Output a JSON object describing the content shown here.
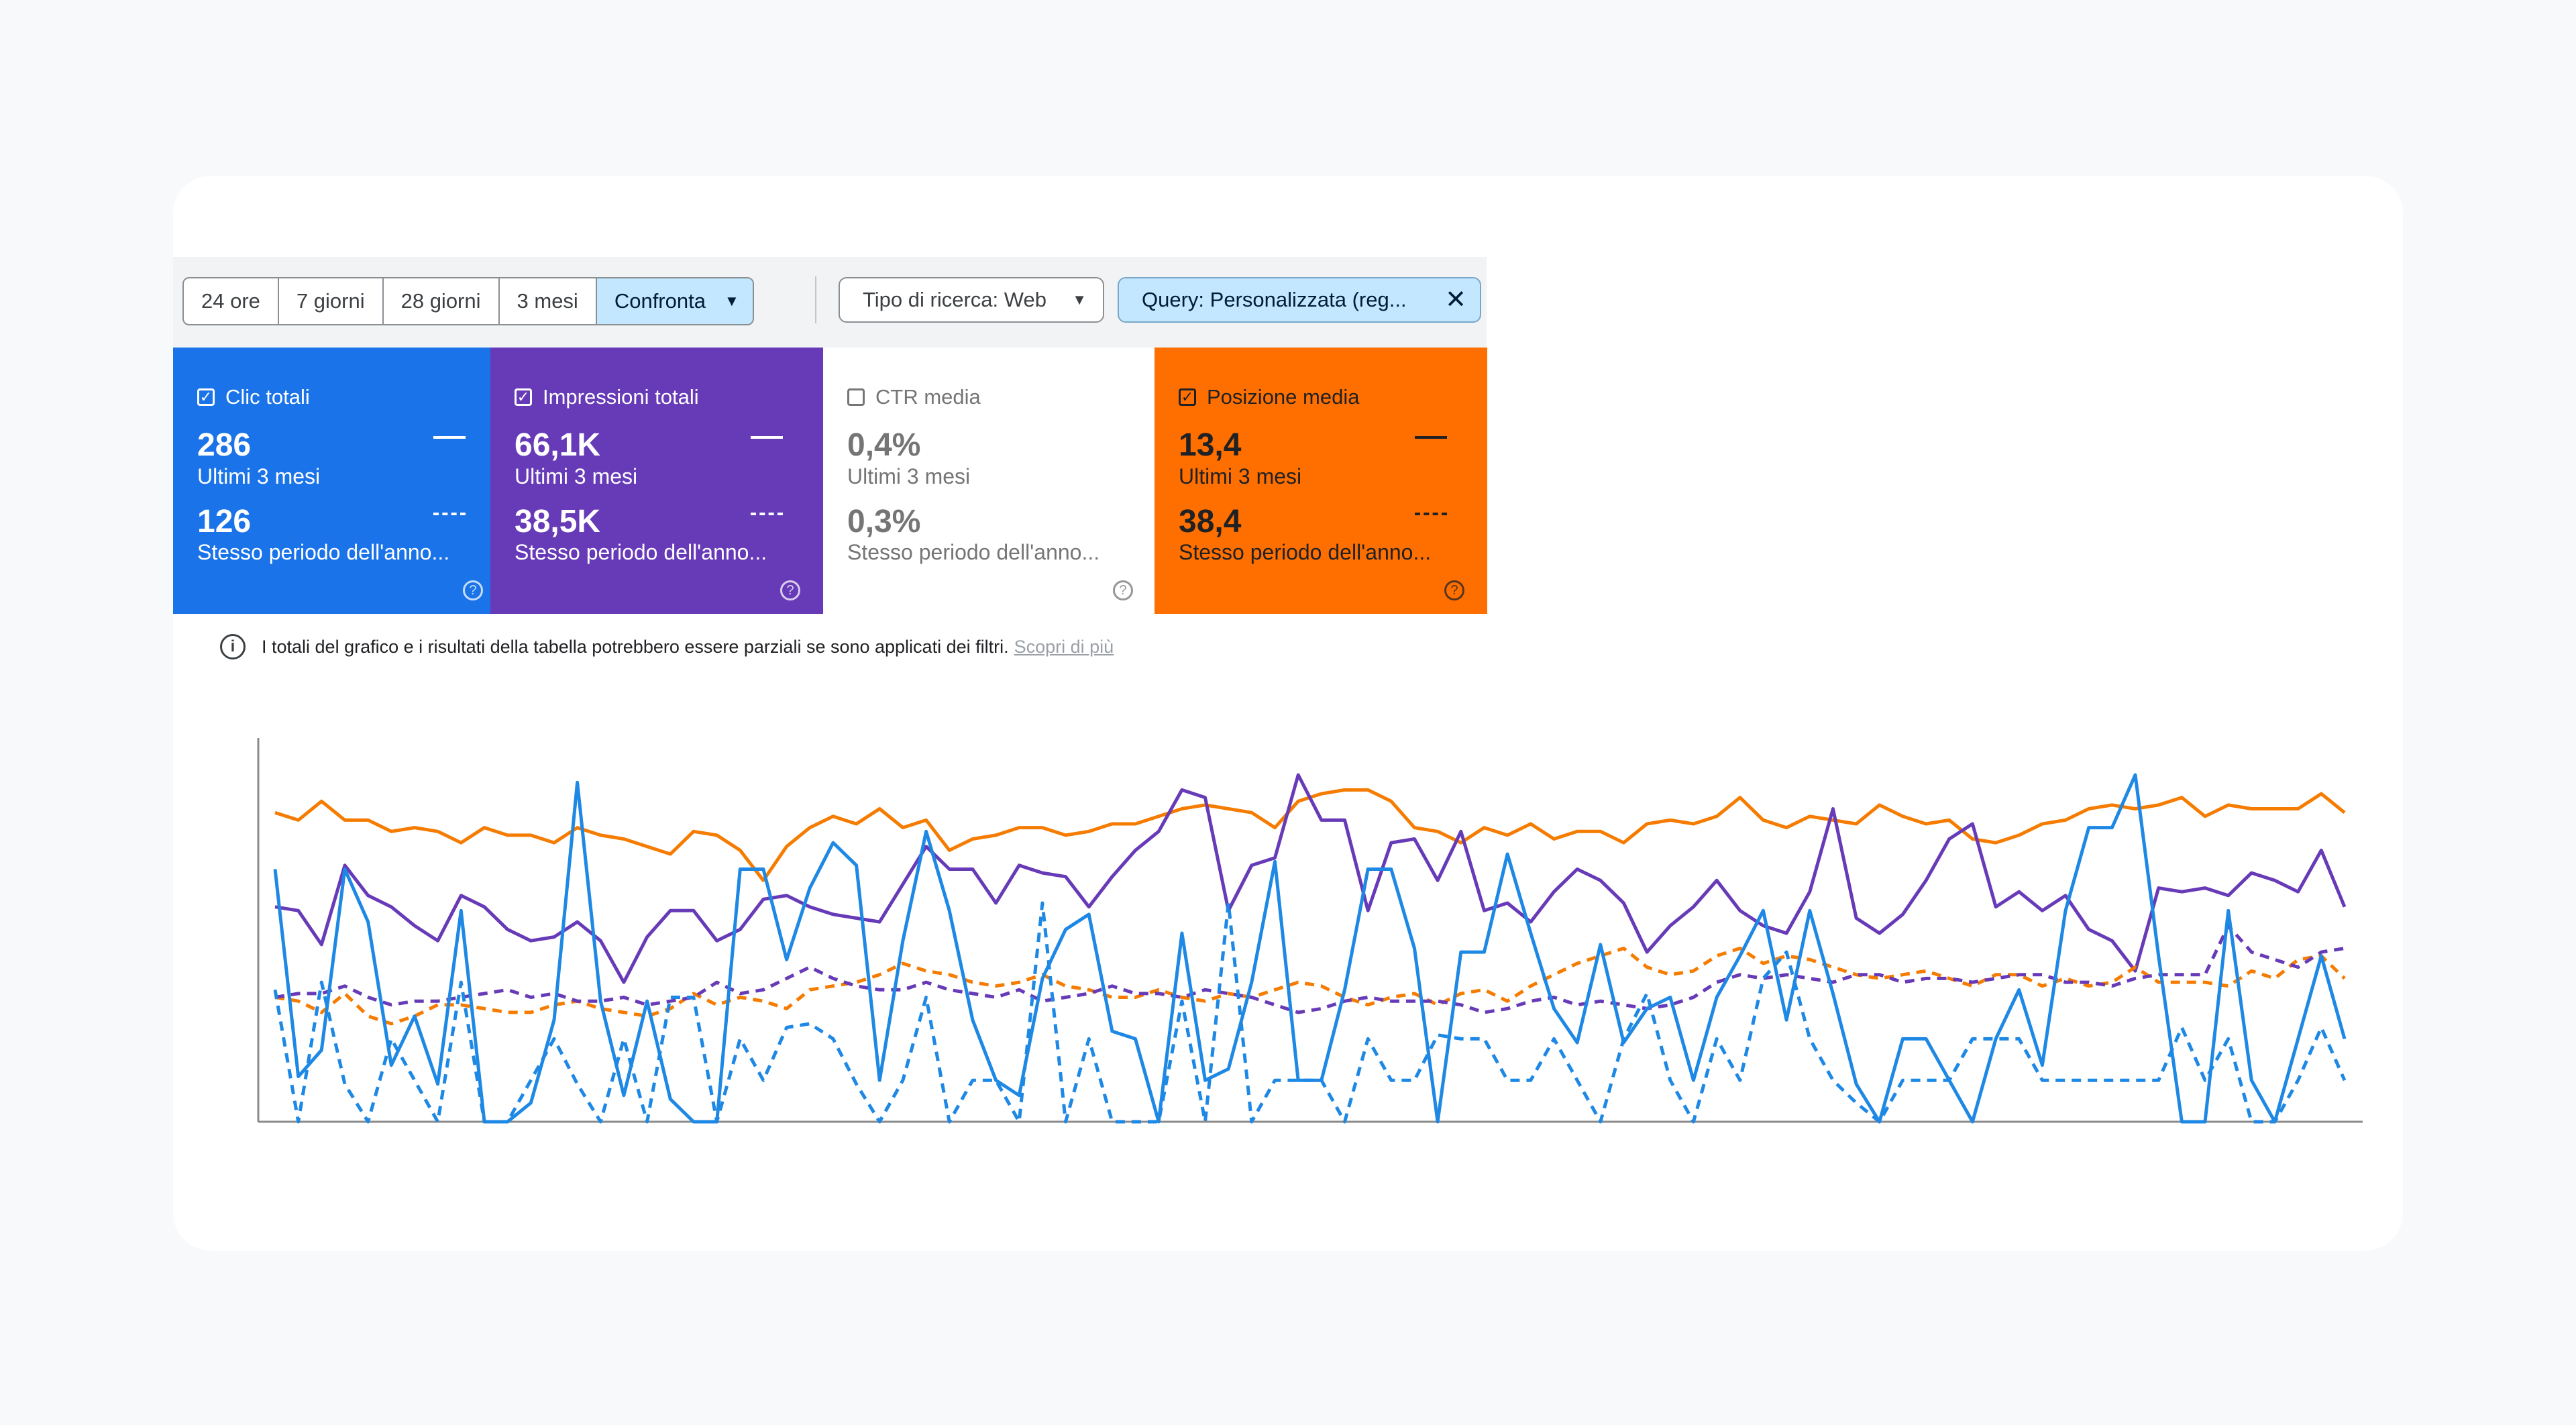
{
  "toolbar": {
    "ranges": [
      "24 ore",
      "7 giorni",
      "28 giorni",
      "3 mesi"
    ],
    "compare_label": "Confronta",
    "search_type_label": "Tipo di ricerca: Web",
    "query_filter_label": "Query: Personalizzata (reg..."
  },
  "metrics": [
    {
      "label": "Clic totali",
      "checked": true,
      "value": "286",
      "period": "Ultimi 3 mesi",
      "compare_value": "126",
      "compare_period": "Stesso periodo dell'anno...",
      "color": "#1a73e8"
    },
    {
      "label": "Impressioni totali",
      "checked": true,
      "value": "66,1K",
      "period": "Ultimi 3 mesi",
      "compare_value": "38,5K",
      "compare_period": "Stesso periodo dell'anno...",
      "color": "#673ab7"
    },
    {
      "label": "CTR media",
      "checked": false,
      "value": "0,4%",
      "period": "Ultimi 3 mesi",
      "compare_value": "0,3%",
      "compare_period": "Stesso periodo dell'anno...",
      "color": "#ffffff"
    },
    {
      "label": "Posizione media",
      "checked": true,
      "value": "13,4",
      "period": "Ultimi 3 mesi",
      "compare_value": "38,4",
      "compare_period": "Stesso periodo dell'anno...",
      "color": "#ff6f00"
    }
  ],
  "notice": {
    "text": "I totali del grafico e i risultati della tabella potrebbero essere parziali se sono applicati dei filtri.",
    "link": "Scopri di più"
  },
  "chart_data": {
    "type": "line",
    "y_axis": "normalized 0-1 per metric (no tick labels shown)",
    "grid": false,
    "legend": "none",
    "series": [
      {
        "metric": "Posizione media",
        "period": "current",
        "color": "#f57c00",
        "style": "solid",
        "values": [
          0.82,
          0.8,
          0.85,
          0.8,
          0.8,
          0.77,
          0.78,
          0.77,
          0.74,
          0.78,
          0.76,
          0.76,
          0.74,
          0.78,
          0.76,
          0.75,
          0.73,
          0.71,
          0.77,
          0.76,
          0.72,
          0.64,
          0.73,
          0.78,
          0.81,
          0.79,
          0.83,
          0.78,
          0.8,
          0.72,
          0.75,
          0.76,
          0.78,
          0.78,
          0.76,
          0.77,
          0.79,
          0.79,
          0.81,
          0.83,
          0.84,
          0.83,
          0.82,
          0.78,
          0.85,
          0.87,
          0.88,
          0.88,
          0.85,
          0.78,
          0.77,
          0.74,
          0.78,
          0.76,
          0.79,
          0.75,
          0.77,
          0.77,
          0.74,
          0.79,
          0.8,
          0.79,
          0.81,
          0.86,
          0.8,
          0.78,
          0.81,
          0.8,
          0.79,
          0.84,
          0.81,
          0.79,
          0.8,
          0.75,
          0.74,
          0.76,
          0.79,
          0.8,
          0.83,
          0.84,
          0.83,
          0.84,
          0.86,
          0.81,
          0.84,
          0.83,
          0.83,
          0.83,
          0.87,
          0.82
        ]
      },
      {
        "metric": "Impressioni totali",
        "period": "current",
        "color": "#673ab7",
        "style": "solid",
        "values": [
          0.57,
          0.56,
          0.47,
          0.68,
          0.6,
          0.57,
          0.52,
          0.48,
          0.6,
          0.57,
          0.51,
          0.48,
          0.49,
          0.53,
          0.48,
          0.37,
          0.49,
          0.56,
          0.56,
          0.48,
          0.51,
          0.59,
          0.6,
          0.57,
          0.55,
          0.54,
          0.53,
          0.63,
          0.73,
          0.67,
          0.67,
          0.58,
          0.68,
          0.66,
          0.65,
          0.57,
          0.65,
          0.72,
          0.77,
          0.88,
          0.86,
          0.56,
          0.68,
          0.7,
          0.92,
          0.8,
          0.8,
          0.56,
          0.74,
          0.75,
          0.64,
          0.77,
          0.56,
          0.58,
          0.53,
          0.61,
          0.67,
          0.64,
          0.58,
          0.45,
          0.52,
          0.57,
          0.64,
          0.56,
          0.52,
          0.5,
          0.61,
          0.83,
          0.54,
          0.5,
          0.55,
          0.64,
          0.75,
          0.79,
          0.57,
          0.61,
          0.56,
          0.6,
          0.51,
          0.48,
          0.4,
          0.62,
          0.61,
          0.62,
          0.6,
          0.66,
          0.64,
          0.61,
          0.72,
          0.57
        ]
      },
      {
        "metric": "Posizione media",
        "period": "previous",
        "color": "#f57c00",
        "style": "dashed",
        "values": [
          0.33,
          0.32,
          0.29,
          0.34,
          0.28,
          0.26,
          0.28,
          0.31,
          0.31,
          0.3,
          0.29,
          0.29,
          0.31,
          0.32,
          0.3,
          0.29,
          0.28,
          0.3,
          0.34,
          0.31,
          0.33,
          0.32,
          0.3,
          0.35,
          0.36,
          0.37,
          0.39,
          0.42,
          0.4,
          0.39,
          0.37,
          0.36,
          0.37,
          0.39,
          0.36,
          0.35,
          0.33,
          0.33,
          0.35,
          0.33,
          0.32,
          0.34,
          0.33,
          0.35,
          0.37,
          0.36,
          0.33,
          0.31,
          0.33,
          0.34,
          0.31,
          0.34,
          0.35,
          0.32,
          0.36,
          0.39,
          0.42,
          0.44,
          0.46,
          0.41,
          0.39,
          0.4,
          0.44,
          0.46,
          0.42,
          0.44,
          0.43,
          0.41,
          0.39,
          0.38,
          0.39,
          0.4,
          0.38,
          0.36,
          0.39,
          0.39,
          0.36,
          0.38,
          0.36,
          0.37,
          0.41,
          0.37,
          0.37,
          0.37,
          0.36,
          0.4,
          0.38,
          0.43,
          0.44,
          0.38
        ]
      },
      {
        "metric": "Impressioni totali",
        "period": "previous",
        "color": "#673ab7",
        "style": "dashed",
        "values": [
          0.33,
          0.34,
          0.34,
          0.36,
          0.33,
          0.31,
          0.32,
          0.32,
          0.33,
          0.34,
          0.35,
          0.33,
          0.34,
          0.32,
          0.32,
          0.33,
          0.31,
          0.32,
          0.33,
          0.37,
          0.34,
          0.35,
          0.38,
          0.41,
          0.38,
          0.36,
          0.35,
          0.35,
          0.37,
          0.35,
          0.34,
          0.33,
          0.35,
          0.32,
          0.33,
          0.34,
          0.36,
          0.34,
          0.34,
          0.33,
          0.35,
          0.34,
          0.33,
          0.31,
          0.29,
          0.3,
          0.32,
          0.33,
          0.32,
          0.32,
          0.32,
          0.31,
          0.29,
          0.3,
          0.32,
          0.33,
          0.31,
          0.32,
          0.31,
          0.3,
          0.31,
          0.33,
          0.37,
          0.39,
          0.38,
          0.39,
          0.38,
          0.37,
          0.39,
          0.39,
          0.37,
          0.38,
          0.38,
          0.37,
          0.38,
          0.39,
          0.39,
          0.37,
          0.37,
          0.36,
          0.38,
          0.39,
          0.39,
          0.39,
          0.52,
          0.45,
          0.43,
          0.41,
          0.45,
          0.46
        ]
      },
      {
        "metric": "Clic totali",
        "period": "current",
        "color": "#1e88e5",
        "style": "solid",
        "values": [
          0.67,
          0.12,
          0.19,
          0.67,
          0.53,
          0.15,
          0.28,
          0.1,
          0.56,
          0.0,
          0.0,
          0.05,
          0.27,
          0.9,
          0.32,
          0.07,
          0.32,
          0.06,
          0.0,
          0.0,
          0.67,
          0.67,
          0.43,
          0.62,
          0.74,
          0.68,
          0.11,
          0.48,
          0.77,
          0.56,
          0.27,
          0.11,
          0.07,
          0.38,
          0.51,
          0.55,
          0.24,
          0.22,
          0.0,
          0.5,
          0.11,
          0.14,
          0.37,
          0.69,
          0.11,
          0.11,
          0.35,
          0.67,
          0.67,
          0.46,
          0.0,
          0.45,
          0.45,
          0.71,
          0.5,
          0.3,
          0.21,
          0.47,
          0.21,
          0.3,
          0.33,
          0.11,
          0.33,
          0.44,
          0.56,
          0.27,
          0.56,
          0.34,
          0.1,
          0.0,
          0.22,
          0.22,
          0.11,
          0.0,
          0.22,
          0.35,
          0.15,
          0.56,
          0.78,
          0.78,
          0.92,
          0.44,
          0.0,
          0.0,
          0.56,
          0.11,
          0.0,
          0.22,
          0.44,
          0.22
        ]
      },
      {
        "metric": "Clic totali",
        "period": "previous",
        "color": "#1e88e5",
        "style": "dashed",
        "values": [
          0.35,
          0.0,
          0.37,
          0.1,
          0.0,
          0.22,
          0.11,
          0.0,
          0.37,
          0.0,
          0.0,
          0.11,
          0.22,
          0.1,
          0.0,
          0.22,
          0.0,
          0.33,
          0.33,
          0.0,
          0.22,
          0.11,
          0.25,
          0.26,
          0.22,
          0.1,
          0.0,
          0.11,
          0.33,
          0.0,
          0.11,
          0.11,
          0.0,
          0.58,
          0.0,
          0.22,
          0.0,
          0.0,
          0.0,
          0.32,
          0.0,
          0.58,
          0.0,
          0.11,
          0.11,
          0.11,
          0.0,
          0.22,
          0.11,
          0.11,
          0.23,
          0.22,
          0.22,
          0.11,
          0.11,
          0.22,
          0.11,
          0.0,
          0.22,
          0.34,
          0.11,
          0.0,
          0.22,
          0.11,
          0.38,
          0.45,
          0.22,
          0.11,
          0.05,
          0.0,
          0.11,
          0.11,
          0.11,
          0.22,
          0.22,
          0.22,
          0.11,
          0.11,
          0.11,
          0.11,
          0.11,
          0.11,
          0.25,
          0.11,
          0.22,
          0.0,
          0.0,
          0.11,
          0.25,
          0.11
        ]
      }
    ]
  }
}
